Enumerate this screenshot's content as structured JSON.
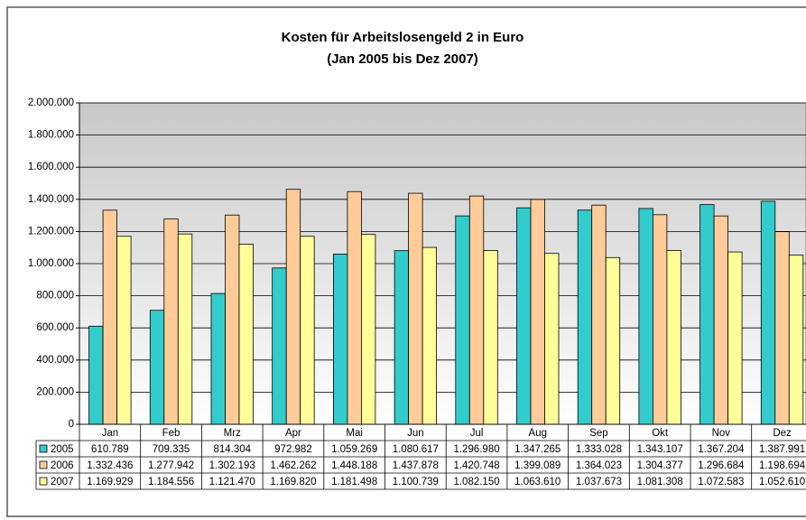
{
  "chart_data": {
    "type": "bar",
    "title": "Kosten für Arbeitslosengeld 2 in Euro",
    "subtitle": "(Jan 2005 bis Dez 2007)",
    "categories": [
      "Jan",
      "Feb",
      "Mrz",
      "Apr",
      "Mai",
      "Jun",
      "Jul",
      "Aug",
      "Sep",
      "Okt",
      "Nov",
      "Dez"
    ],
    "series": [
      {
        "name": "2005",
        "color": "#33cccc",
        "values": [
          610789,
          709335,
          814304,
          972982,
          1059269,
          1080617,
          1296980,
          1347265,
          1333028,
          1343107,
          1367204,
          1387991
        ],
        "value_labels": [
          "610.789",
          "709.335",
          "814.304",
          "972.982",
          "1.059.269",
          "1.080.617",
          "1.296.980",
          "1.347.265",
          "1.333.028",
          "1.343.107",
          "1.367.204",
          "1.387.991"
        ]
      },
      {
        "name": "2006",
        "color": "#ffcc99",
        "values": [
          1332436,
          1277942,
          1302193,
          1462262,
          1448188,
          1437878,
          1420748,
          1399089,
          1364023,
          1304377,
          1296684,
          1198694
        ],
        "value_labels": [
          "1.332.436",
          "1.277.942",
          "1.302.193",
          "1.462.262",
          "1.448.188",
          "1.437.878",
          "1.420.748",
          "1.399.089",
          "1.364.023",
          "1.304.377",
          "1.296.684",
          "1.198.694"
        ]
      },
      {
        "name": "2007",
        "color": "#ffff99",
        "values": [
          1169929,
          1184556,
          1121470,
          1169820,
          1181498,
          1100739,
          1082150,
          1063610,
          1037673,
          1081308,
          1072583,
          1052610
        ],
        "value_labels": [
          "1.169.929",
          "1.184.556",
          "1.121.470",
          "1.169.820",
          "1.181.498",
          "1.100.739",
          "1.082.150",
          "1.063.610",
          "1.037.673",
          "1.081.308",
          "1.072.583",
          "1.052.610"
        ]
      }
    ],
    "ylim": [
      0,
      2000000
    ],
    "yticks": [
      0,
      {
        "value": 200000,
        "label": "200.000"
      },
      {
        "value": 400000,
        "label": "400.000"
      },
      {
        "value": 600000,
        "label": "600.000"
      },
      {
        "value": 800000,
        "label": "800.000"
      },
      {
        "value": 1000000,
        "label": "1.000.000"
      },
      {
        "value": 1200000,
        "label": "1.200.000"
      },
      {
        "value": 1400000,
        "label": "1.400.000"
      },
      {
        "value": 1600000,
        "label": "1.600.000"
      },
      {
        "value": 1800000,
        "label": "1.800.000"
      },
      {
        "value": 2000000,
        "label": "2.000.000"
      }
    ],
    "grid": true
  }
}
